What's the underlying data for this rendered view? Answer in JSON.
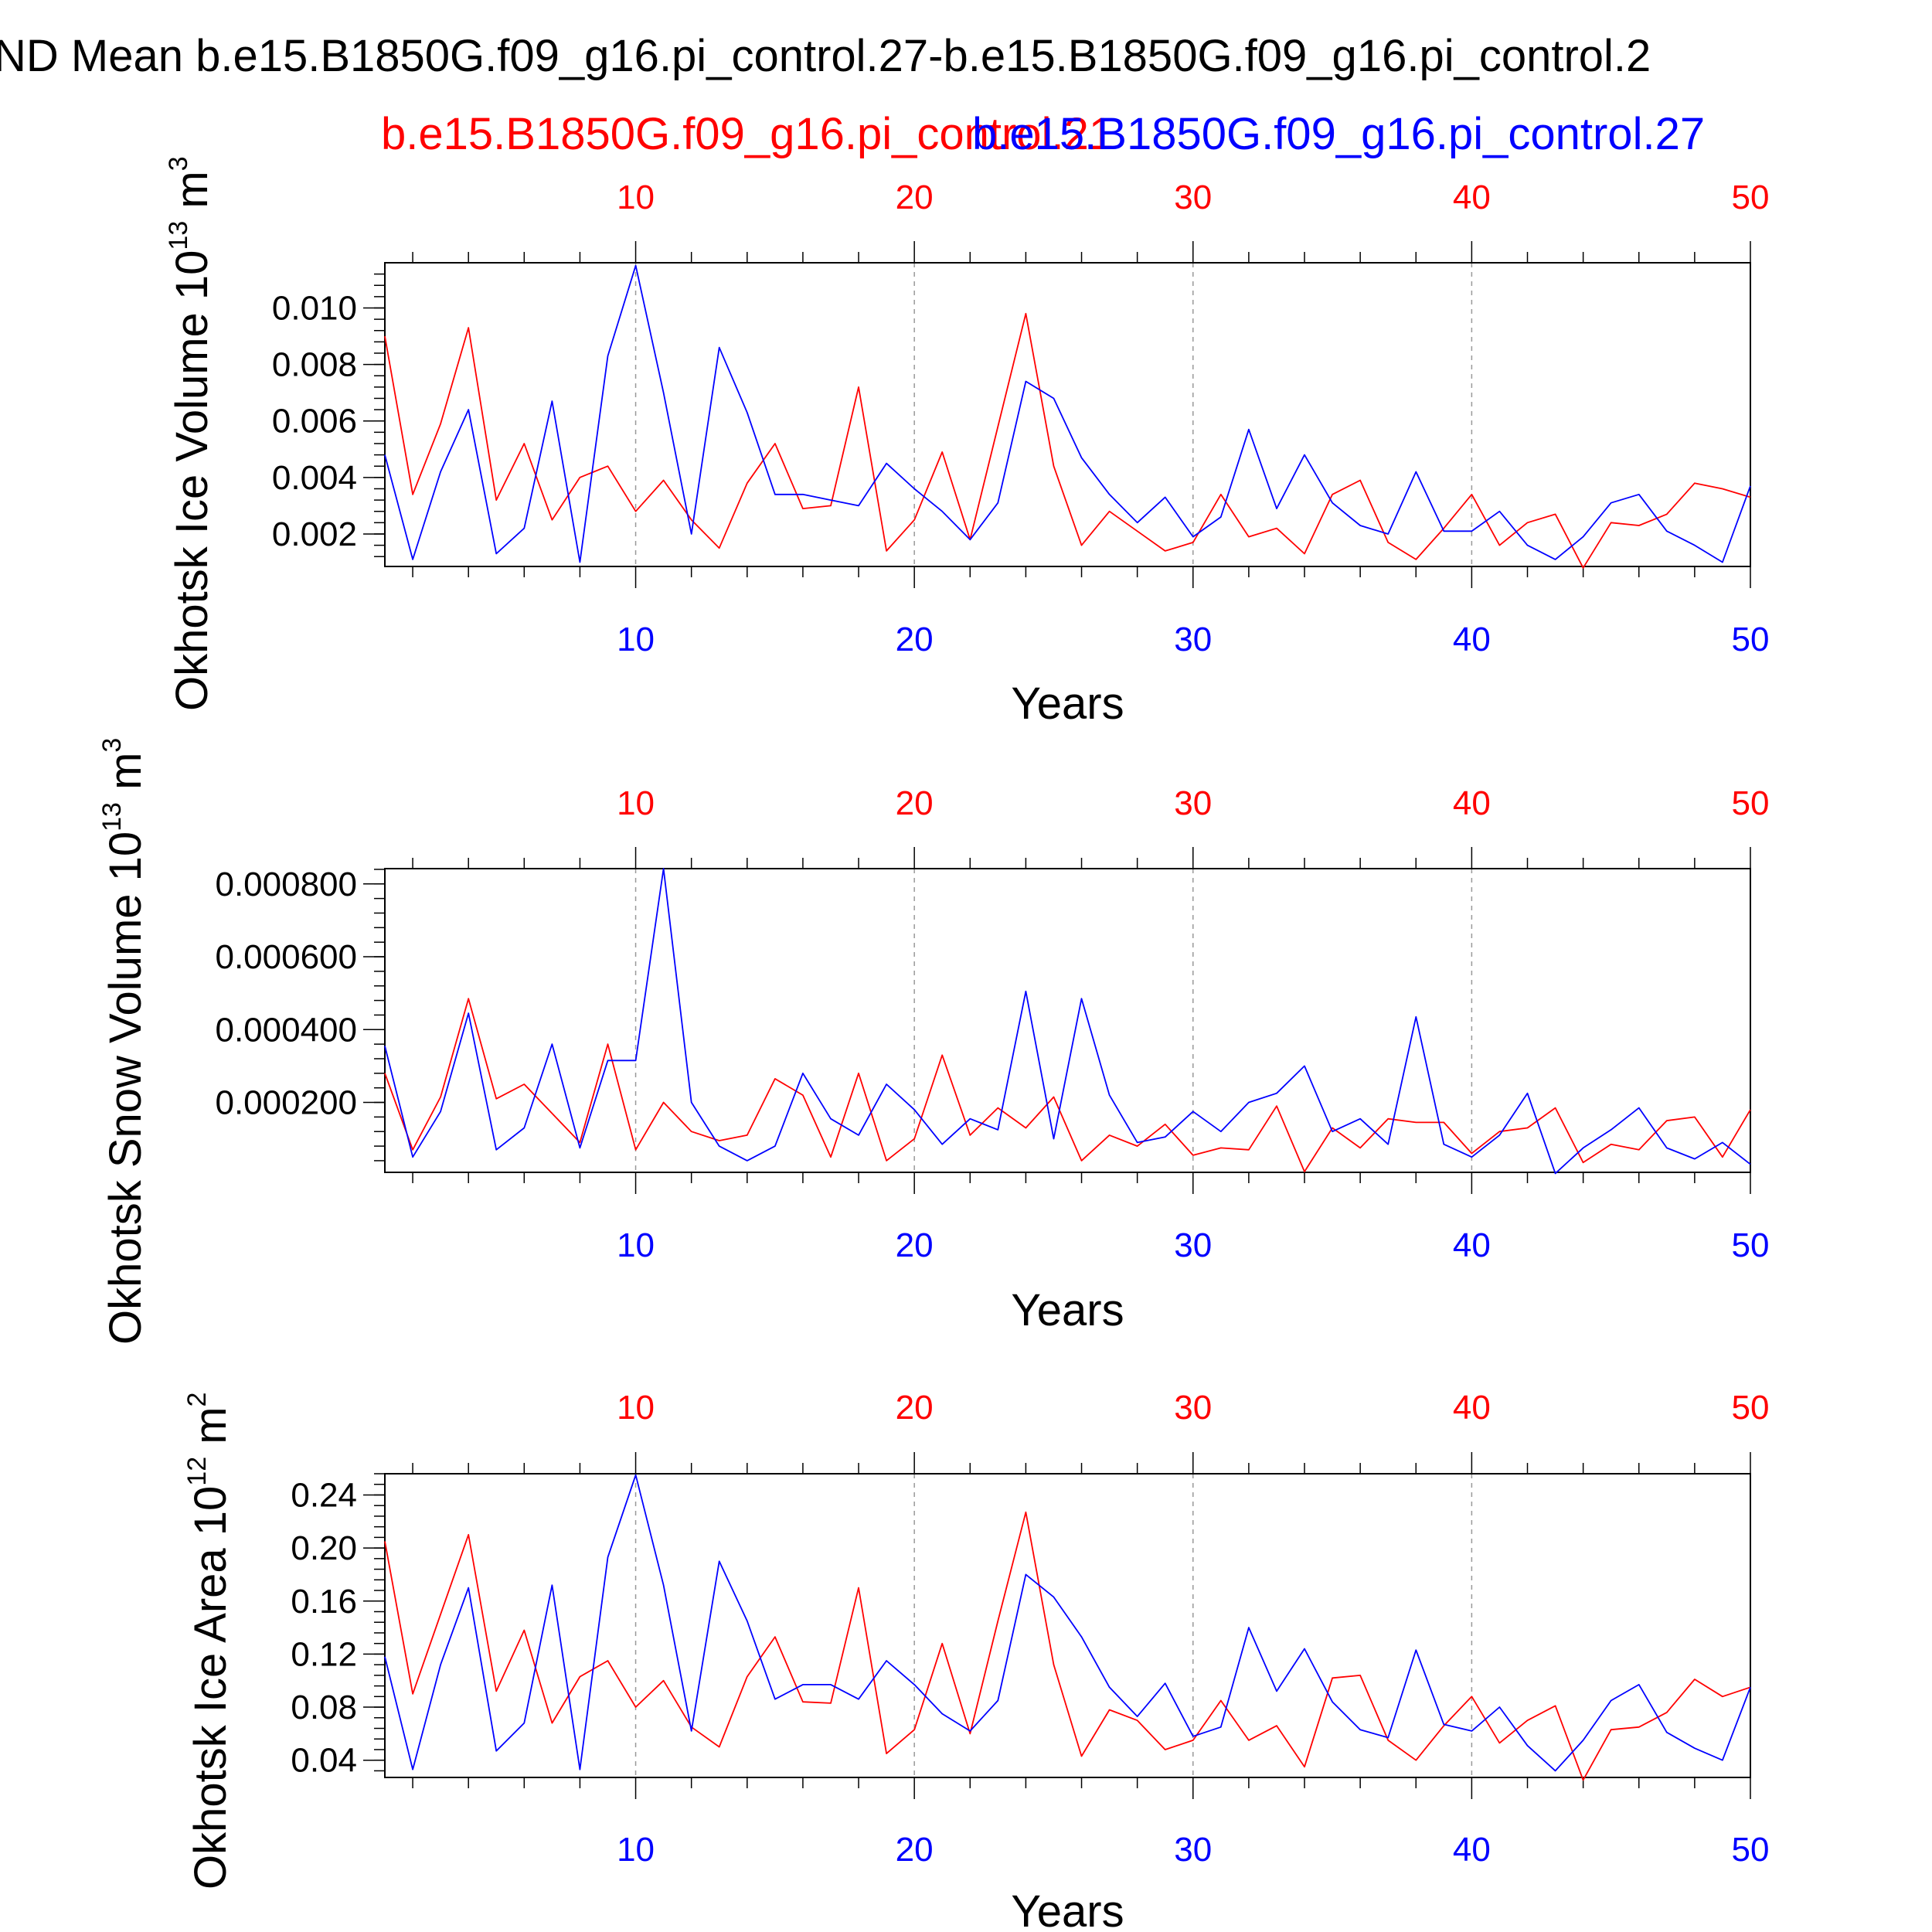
{
  "figure_title": "ND Mean b.e15.B1850G.f09_g16.pi_control.27-b.e15.B1850G.f09_g16.pi_control.2",
  "legend": {
    "red_label": "b.e15.B1850G.f09_g16.pi_control.21",
    "blue_label": "b.e15.B1850G.f09_g16.pi_control.27"
  },
  "colors": {
    "red": "#ff0000",
    "blue": "#0000ff",
    "axes": "#000000",
    "grid": "#999999"
  },
  "chart_data": [
    {
      "type": "line",
      "ylabel": {
        "main": "Okhotsk Ice Volume 10",
        "exp": "13",
        "unit": " m",
        "unit_exp": "3"
      },
      "xlabel": "Years",
      "xlim": [
        1,
        50
      ],
      "ylim": [
        0.00085,
        0.0116
      ],
      "yticks": [
        "0.002",
        "0.004",
        "0.006",
        "0.008",
        "0.010"
      ],
      "ytick_values": [
        0.002,
        0.004,
        0.006,
        0.008,
        0.01
      ],
      "xticks": [
        "10",
        "20",
        "30",
        "40",
        "50"
      ],
      "xtick_values": [
        10,
        20,
        30,
        40,
        50
      ],
      "grid": "dashed vertical at x ticks",
      "series": [
        {
          "name": "b.e15.B1850G.f09_g16.pi_control.21",
          "color": "#ff0000",
          "values": [
            0.009,
            0.0034,
            0.0059,
            0.0093,
            0.0032,
            0.0052,
            0.0025,
            0.004,
            0.0044,
            0.0028,
            0.0039,
            0.0025,
            0.0015,
            0.0038,
            0.0052,
            0.0029,
            0.003,
            0.0072,
            0.0014,
            0.0025,
            0.0049,
            0.0018,
            0.0058,
            0.0098,
            0.0044,
            0.0016,
            0.0028,
            0.0021,
            0.0014,
            0.0017,
            0.0034,
            0.0019,
            0.0022,
            0.0013,
            0.0034,
            0.0039,
            0.0017,
            0.0011,
            0.0022,
            0.0034,
            0.0016,
            0.0024,
            0.0027,
            0.0008,
            0.0024,
            0.0023,
            0.0027,
            0.0038,
            0.0036,
            0.0033
          ]
        },
        {
          "name": "b.e15.B1850G.f09_g16.pi_control.27",
          "color": "#0000ff",
          "values": [
            0.0048,
            0.0011,
            0.0042,
            0.0064,
            0.0013,
            0.0022,
            0.0067,
            0.001,
            0.0083,
            0.0115,
            0.007,
            0.002,
            0.0086,
            0.0063,
            0.0034,
            0.0034,
            0.0032,
            0.003,
            0.0045,
            0.0036,
            0.0028,
            0.0018,
            0.0031,
            0.0074,
            0.0068,
            0.0047,
            0.0034,
            0.0024,
            0.0033,
            0.0019,
            0.0026,
            0.0057,
            0.0029,
            0.0048,
            0.0031,
            0.0023,
            0.002,
            0.0042,
            0.0021,
            0.0021,
            0.0028,
            0.0016,
            0.0011,
            0.0019,
            0.0031,
            0.0034,
            0.0021,
            0.0016,
            0.001,
            0.0037
          ]
        }
      ]
    },
    {
      "type": "line",
      "ylabel": {
        "main": "Okhotsk Snow Volume 10",
        "exp": "13",
        "unit": " m",
        "unit_exp": "3"
      },
      "xlabel": "Years",
      "xlim": [
        1,
        50
      ],
      "ylim": [
        8e-06,
        0.000842
      ],
      "yticks": [
        "0.000200",
        "0.000400",
        "0.000600",
        "0.000800"
      ],
      "ytick_values": [
        0.0002,
        0.0004,
        0.0006,
        0.0008
      ],
      "xticks": [
        "10",
        "20",
        "30",
        "40",
        "50"
      ],
      "xtick_values": [
        10,
        20,
        30,
        40,
        50
      ],
      "grid": "dashed vertical at x ticks",
      "series": [
        {
          "name": "b.e15.B1850G.f09_g16.pi_control.21",
          "color": "#ff0000",
          "values": [
            0.00028,
            7e-05,
            0.000215,
            0.000485,
            0.00021,
            0.00025,
            0.00017,
            9e-05,
            0.00036,
            7e-05,
            0.0002,
            0.00012,
            9.5e-05,
            0.00011,
            0.000265,
            0.00022,
            5e-05,
            0.00028,
            4e-05,
            0.0001,
            0.00033,
            0.00011,
            0.000185,
            0.00013,
            0.000215,
            4e-05,
            0.00011,
            8e-05,
            0.00014,
            5.5e-05,
            7.5e-05,
            7e-05,
            0.00019,
            1e-05,
            0.00013,
            7.5e-05,
            0.000155,
            0.000145,
            0.000145,
            6e-05,
            0.00012,
            0.00013,
            0.000185,
            3.5e-05,
            8.5e-05,
            7e-05,
            0.00015,
            0.00016,
            5e-05,
            0.00018
          ]
        },
        {
          "name": "b.e15.B1850G.f09_g16.pi_control.27",
          "color": "#0000ff",
          "values": [
            0.000355,
            5e-05,
            0.000175,
            0.000445,
            7e-05,
            0.00013,
            0.00036,
            7.5e-05,
            0.000315,
            0.000315,
            0.000842,
            0.0002,
            8e-05,
            4e-05,
            8e-05,
            0.00028,
            0.000155,
            0.00011,
            0.00025,
            0.00018,
            8.5e-05,
            0.000155,
            0.000125,
            0.000505,
            0.0001,
            0.000485,
            0.00022,
            9e-05,
            0.000105,
            0.000175,
            0.00012,
            0.0002,
            0.000225,
            0.0003,
            0.00012,
            0.000155,
            8.5e-05,
            0.000435,
            8.5e-05,
            5e-05,
            0.00011,
            0.000225,
            5e-06,
            7.5e-05,
            0.000125,
            0.000185,
            7.5e-05,
            4.5e-05,
            9e-05,
            3e-05
          ]
        }
      ]
    },
    {
      "type": "line",
      "ylabel": {
        "main": "Okhotsk Ice Area 10",
        "exp": "12",
        "unit": " m",
        "unit_exp": "2"
      },
      "xlabel": "Years",
      "xlim": [
        1,
        50
      ],
      "ylim": [
        0.027,
        0.256
      ],
      "yticks": [
        "0.04",
        "0.08",
        "0.12",
        "0.16",
        "0.20",
        "0.24"
      ],
      "ytick_values": [
        0.04,
        0.08,
        0.12,
        0.16,
        0.2,
        0.24
      ],
      "xticks": [
        "10",
        "20",
        "30",
        "40",
        "50"
      ],
      "xtick_values": [
        10,
        20,
        30,
        40,
        50
      ],
      "grid": "dashed vertical at x ticks",
      "series": [
        {
          "name": "b.e15.B1850G.f09_g16.pi_control.21",
          "color": "#ff0000",
          "values": [
            0.205,
            0.09,
            0.15,
            0.21,
            0.092,
            0.138,
            0.068,
            0.103,
            0.115,
            0.08,
            0.1,
            0.065,
            0.05,
            0.103,
            0.133,
            0.084,
            0.083,
            0.17,
            0.045,
            0.063,
            0.128,
            0.06,
            0.145,
            0.227,
            0.112,
            0.043,
            0.078,
            0.07,
            0.048,
            0.055,
            0.085,
            0.055,
            0.066,
            0.035,
            0.102,
            0.104,
            0.055,
            0.04,
            0.066,
            0.088,
            0.053,
            0.07,
            0.081,
            0.025,
            0.063,
            0.065,
            0.076,
            0.101,
            0.088,
            0.095
          ]
        },
        {
          "name": "b.e15.B1850G.f09_g16.pi_control.27",
          "color": "#0000ff",
          "values": [
            0.118,
            0.033,
            0.112,
            0.17,
            0.047,
            0.068,
            0.172,
            0.033,
            0.193,
            0.255,
            0.172,
            0.062,
            0.19,
            0.145,
            0.086,
            0.097,
            0.097,
            0.086,
            0.115,
            0.097,
            0.075,
            0.062,
            0.085,
            0.18,
            0.163,
            0.133,
            0.095,
            0.073,
            0.098,
            0.058,
            0.065,
            0.14,
            0.092,
            0.124,
            0.084,
            0.063,
            0.057,
            0.123,
            0.067,
            0.062,
            0.08,
            0.051,
            0.032,
            0.055,
            0.085,
            0.097,
            0.061,
            0.049,
            0.04,
            0.095
          ]
        }
      ]
    }
  ]
}
